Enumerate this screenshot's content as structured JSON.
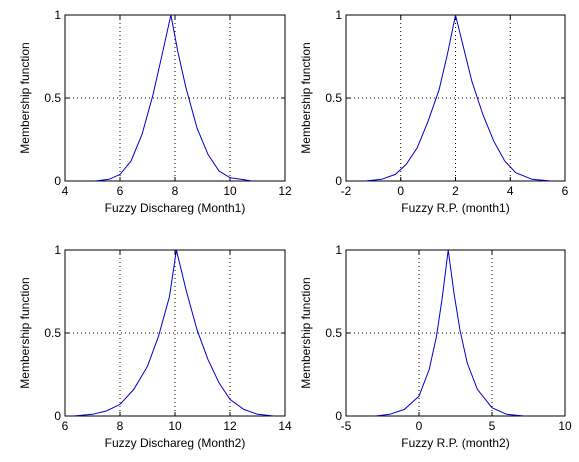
{
  "chart_data": [
    {
      "type": "line",
      "xlabel": "Fuzzy Dischareg (Month1)",
      "ylabel": "Membership function",
      "xlim": [
        4,
        12
      ],
      "ylim": [
        0,
        1
      ],
      "xticks": [
        4,
        6,
        8,
        10,
        12
      ],
      "yticks": [
        0,
        0.5,
        1
      ],
      "xtick_labels": [
        "4",
        "6",
        "8",
        "10",
        "12"
      ],
      "ytick_labels": [
        "0",
        "0.5",
        "1"
      ],
      "grid": true,
      "line_color": "#0000cc",
      "x": [
        5.1,
        5.6,
        6.0,
        6.4,
        6.8,
        7.2,
        7.5,
        7.85,
        8.1,
        8.4,
        8.8,
        9.2,
        9.6,
        10.0,
        10.4,
        10.8
      ],
      "y": [
        0.0,
        0.01,
        0.04,
        0.12,
        0.28,
        0.52,
        0.74,
        1.0,
        0.78,
        0.56,
        0.32,
        0.16,
        0.06,
        0.02,
        0.01,
        0.0
      ]
    },
    {
      "type": "line",
      "xlabel": "Fuzzy R.P. (month1)",
      "ylabel": "Membership function",
      "xlim": [
        -2,
        6
      ],
      "ylim": [
        0,
        1
      ],
      "xticks": [
        -2,
        0,
        2,
        4,
        6
      ],
      "yticks": [
        0,
        0.5,
        1
      ],
      "xtick_labels": [
        "-2",
        "0",
        "2",
        "4",
        "6"
      ],
      "ytick_labels": [
        "0",
        "0.5",
        "1"
      ],
      "grid": true,
      "line_color": "#0000cc",
      "x": [
        -1.3,
        -0.7,
        -0.2,
        0.2,
        0.6,
        1.0,
        1.4,
        1.7,
        2.0,
        2.3,
        2.6,
        3.0,
        3.4,
        3.8,
        4.2,
        4.8,
        5.5
      ],
      "y": [
        0.0,
        0.01,
        0.04,
        0.1,
        0.2,
        0.36,
        0.55,
        0.76,
        1.0,
        0.8,
        0.6,
        0.4,
        0.24,
        0.12,
        0.05,
        0.01,
        0.0
      ]
    },
    {
      "type": "line",
      "xlabel": "Fuzzy Dischareg (Month2)",
      "ylabel": "Membership function",
      "xlim": [
        6,
        14
      ],
      "ylim": [
        0,
        1
      ],
      "xticks": [
        6,
        8,
        10,
        12,
        14
      ],
      "yticks": [
        0,
        0.5,
        1
      ],
      "xtick_labels": [
        "6",
        "8",
        "10",
        "12",
        "14"
      ],
      "ytick_labels": [
        "0",
        "0.5",
        "1"
      ],
      "grid": true,
      "line_color": "#0000cc",
      "x": [
        6.3,
        7.0,
        7.5,
        8.0,
        8.5,
        9.0,
        9.4,
        9.8,
        10.05,
        10.4,
        10.8,
        11.2,
        11.6,
        12.0,
        12.5,
        13.0,
        13.6
      ],
      "y": [
        0.0,
        0.01,
        0.03,
        0.07,
        0.16,
        0.3,
        0.48,
        0.72,
        1.0,
        0.76,
        0.52,
        0.34,
        0.2,
        0.1,
        0.04,
        0.01,
        0.0
      ]
    },
    {
      "type": "line",
      "xlabel": "Fuzzy R.P. (month2)",
      "ylabel": "Membership function",
      "xlim": [
        -5,
        10
      ],
      "ylim": [
        0,
        1
      ],
      "xticks": [
        -5,
        0,
        5,
        10
      ],
      "yticks": [
        0,
        0.5,
        1
      ],
      "xtick_labels": [
        "-5",
        "0",
        "5",
        "10"
      ],
      "ytick_labels": [
        "0",
        "0.5",
        "1"
      ],
      "grid": true,
      "line_color": "#0000cc",
      "x": [
        -3.0,
        -2.0,
        -1.0,
        0.0,
        0.7,
        1.2,
        1.6,
        2.0,
        2.4,
        2.8,
        3.3,
        4.0,
        5.0,
        6.0,
        7.2
      ],
      "y": [
        0.0,
        0.01,
        0.04,
        0.12,
        0.28,
        0.48,
        0.72,
        1.0,
        0.74,
        0.52,
        0.32,
        0.16,
        0.05,
        0.01,
        0.0
      ]
    }
  ]
}
